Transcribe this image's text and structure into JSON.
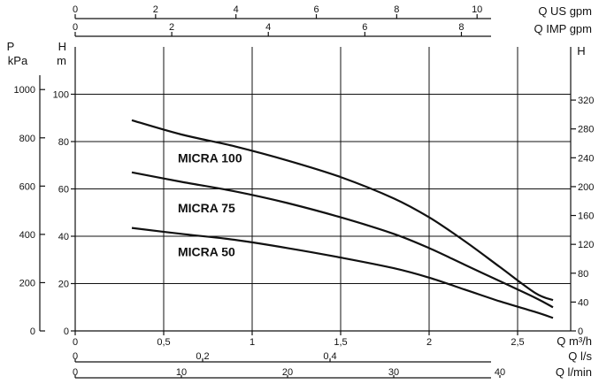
{
  "chart_data": {
    "type": "line",
    "title": "",
    "grid": true,
    "x": {
      "label": "Q m³/h",
      "range": [
        0,
        2.8
      ],
      "ticks": [
        {
          "value": 0,
          "label": "0"
        },
        {
          "value": 0.5,
          "label": "0,5"
        },
        {
          "value": 1,
          "label": "1"
        },
        {
          "value": 1.5,
          "label": "1,5"
        },
        {
          "value": 2,
          "label": "2"
        },
        {
          "value": 2.5,
          "label": "2,5"
        }
      ]
    },
    "y": {
      "label_line1": "H",
      "label_line2": "m",
      "range": [
        0,
        120
      ],
      "ticks": [
        {
          "value": 0,
          "label": "0"
        },
        {
          "value": 20,
          "label": "20"
        },
        {
          "value": 40,
          "label": "40"
        },
        {
          "value": 60,
          "label": "60"
        },
        {
          "value": 80,
          "label": "80"
        },
        {
          "value": 100,
          "label": "100"
        }
      ]
    },
    "y_kpa": {
      "label_line1": "P",
      "label_line2": "kPa",
      "ticks": [
        {
          "value": 0,
          "label": "0"
        },
        {
          "value": 200,
          "label": "200"
        },
        {
          "value": 400,
          "label": "400"
        },
        {
          "value": 600,
          "label": "600"
        },
        {
          "value": 800,
          "label": "800"
        },
        {
          "value": 1000,
          "label": "1000"
        }
      ]
    },
    "y_ft": {
      "label": "H",
      "ticks": [
        {
          "value": 0,
          "label": "0"
        },
        {
          "value": 40,
          "label": "40"
        },
        {
          "value": 80,
          "label": "80"
        },
        {
          "value": 120,
          "label": "120"
        },
        {
          "value": 160,
          "label": "160"
        },
        {
          "value": 200,
          "label": "200"
        },
        {
          "value": 240,
          "label": "240"
        },
        {
          "value": 280,
          "label": "280"
        },
        {
          "value": 320,
          "label": "320"
        }
      ]
    },
    "top_axes": [
      {
        "label": "Q US gpm",
        "ticks": [
          {
            "value": 0,
            "label": "0"
          },
          {
            "value": 2,
            "label": "2"
          },
          {
            "value": 4,
            "label": "4"
          },
          {
            "value": 6,
            "label": "6"
          },
          {
            "value": 8,
            "label": "8"
          },
          {
            "value": 10,
            "label": "10"
          }
        ]
      },
      {
        "label": "Q IMP gpm",
        "ticks": [
          {
            "value": 0,
            "label": "0"
          },
          {
            "value": 2,
            "label": "2"
          },
          {
            "value": 4,
            "label": "4"
          },
          {
            "value": 6,
            "label": "6"
          },
          {
            "value": 8,
            "label": "8"
          }
        ]
      }
    ],
    "bottom_axes": [
      {
        "label": "Q l/s",
        "ticks": [
          {
            "value": 0,
            "label": "0"
          },
          {
            "value": 0.2,
            "label": "0,2"
          },
          {
            "value": 0.4,
            "label": "0,4"
          }
        ]
      },
      {
        "label": "Q l/min",
        "ticks": [
          {
            "value": 0,
            "label": "0"
          },
          {
            "value": 10,
            "label": "10"
          },
          {
            "value": 20,
            "label": "20"
          },
          {
            "value": 30,
            "label": "30"
          },
          {
            "value": 40,
            "label": "40"
          }
        ]
      }
    ],
    "series": [
      {
        "name": "MICRA 100",
        "x": [
          0.32,
          0.6,
          0.9,
          1.2,
          1.5,
          1.8,
          2.0,
          2.2,
          2.4,
          2.6,
          2.7
        ],
        "y": [
          89,
          83,
          78,
          72,
          65,
          56,
          48,
          38,
          27,
          16,
          13
        ],
        "label_at": [
          0.58,
          73
        ]
      },
      {
        "name": "MICRA 75",
        "x": [
          0.32,
          0.6,
          0.9,
          1.2,
          1.5,
          1.8,
          2.0,
          2.2,
          2.4,
          2.6,
          2.7
        ],
        "y": [
          67,
          63,
          59,
          54,
          48,
          41,
          35,
          28,
          21,
          14,
          10
        ],
        "label_at": [
          0.58,
          52
        ]
      },
      {
        "name": "MICRA 50",
        "x": [
          0.32,
          0.6,
          0.9,
          1.2,
          1.5,
          1.8,
          2.0,
          2.2,
          2.4,
          2.6,
          2.7
        ],
        "y": [
          43.5,
          41,
          38.5,
          35,
          31,
          26.5,
          22.5,
          17.5,
          12.5,
          8,
          5.5
        ],
        "label_at": [
          0.58,
          33.5
        ]
      }
    ]
  }
}
